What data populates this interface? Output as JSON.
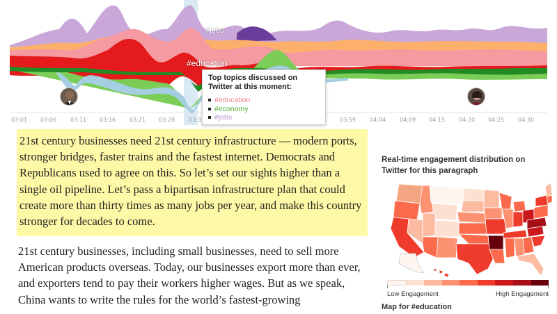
{
  "stream": {
    "time_labels": [
      "03:01",
      "03:06",
      "03:11",
      "03:16",
      "03:21",
      "03:28",
      "03:3",
      "03:59",
      "04:04",
      "04:09",
      "04:15",
      "04:20",
      "04:25",
      "04:30"
    ],
    "labels": {
      "jobs": "#jobs",
      "education": "#education"
    },
    "colors": {
      "jobs": "#c9a7d9",
      "jobs_dark": "#6a3d9a",
      "education": "#f49aa0",
      "education_dark": "#e41a1c",
      "economy": "#7ccd58",
      "economy_dark": "#238b23",
      "other": "#fdb06b",
      "other2": "#a6cee3"
    }
  },
  "tooltip": {
    "title": "Top topics discussed on Twitter at this moment:",
    "items": [
      {
        "label": "#education",
        "color": "#f07c82"
      },
      {
        "label": "#economy",
        "color": "#4caf2e"
      },
      {
        "label": "#jobs",
        "color": "#b793cf"
      }
    ]
  },
  "speech": {
    "paragraph_1": "21st century businesses need 21st century infrastructure — modern ports, stronger bridges, faster trains and the fastest internet. Democrats and Republicans used to agree on this. So let’s set our sights higher than a single oil pipeline. Let’s pass a bipartisan infrastructure plan that could create more than thirty times as many jobs per year, and make this country stronger for decades to come.",
    "paragraph_2": "21st century businesses, including small businesses, need to sell more American products overseas. Today, our businesses export more than ever, and exporters tend to pay their workers higher wages. But as we speak, China wants to write the rules for the world’s fastest-growing"
  },
  "panel": {
    "title": "Real-time engagement distribution on Twitter for this paragraph",
    "legend_low": "Low Engagement",
    "legend_high": "High Engagement",
    "legend_colors": [
      "#fff5f0",
      "#fee0d2",
      "#fcbba1",
      "#fc9272",
      "#fb6a4a",
      "#ef3b2c",
      "#cb181d",
      "#a50f15",
      "#67000d"
    ],
    "map_caption": "Map for #education"
  }
}
